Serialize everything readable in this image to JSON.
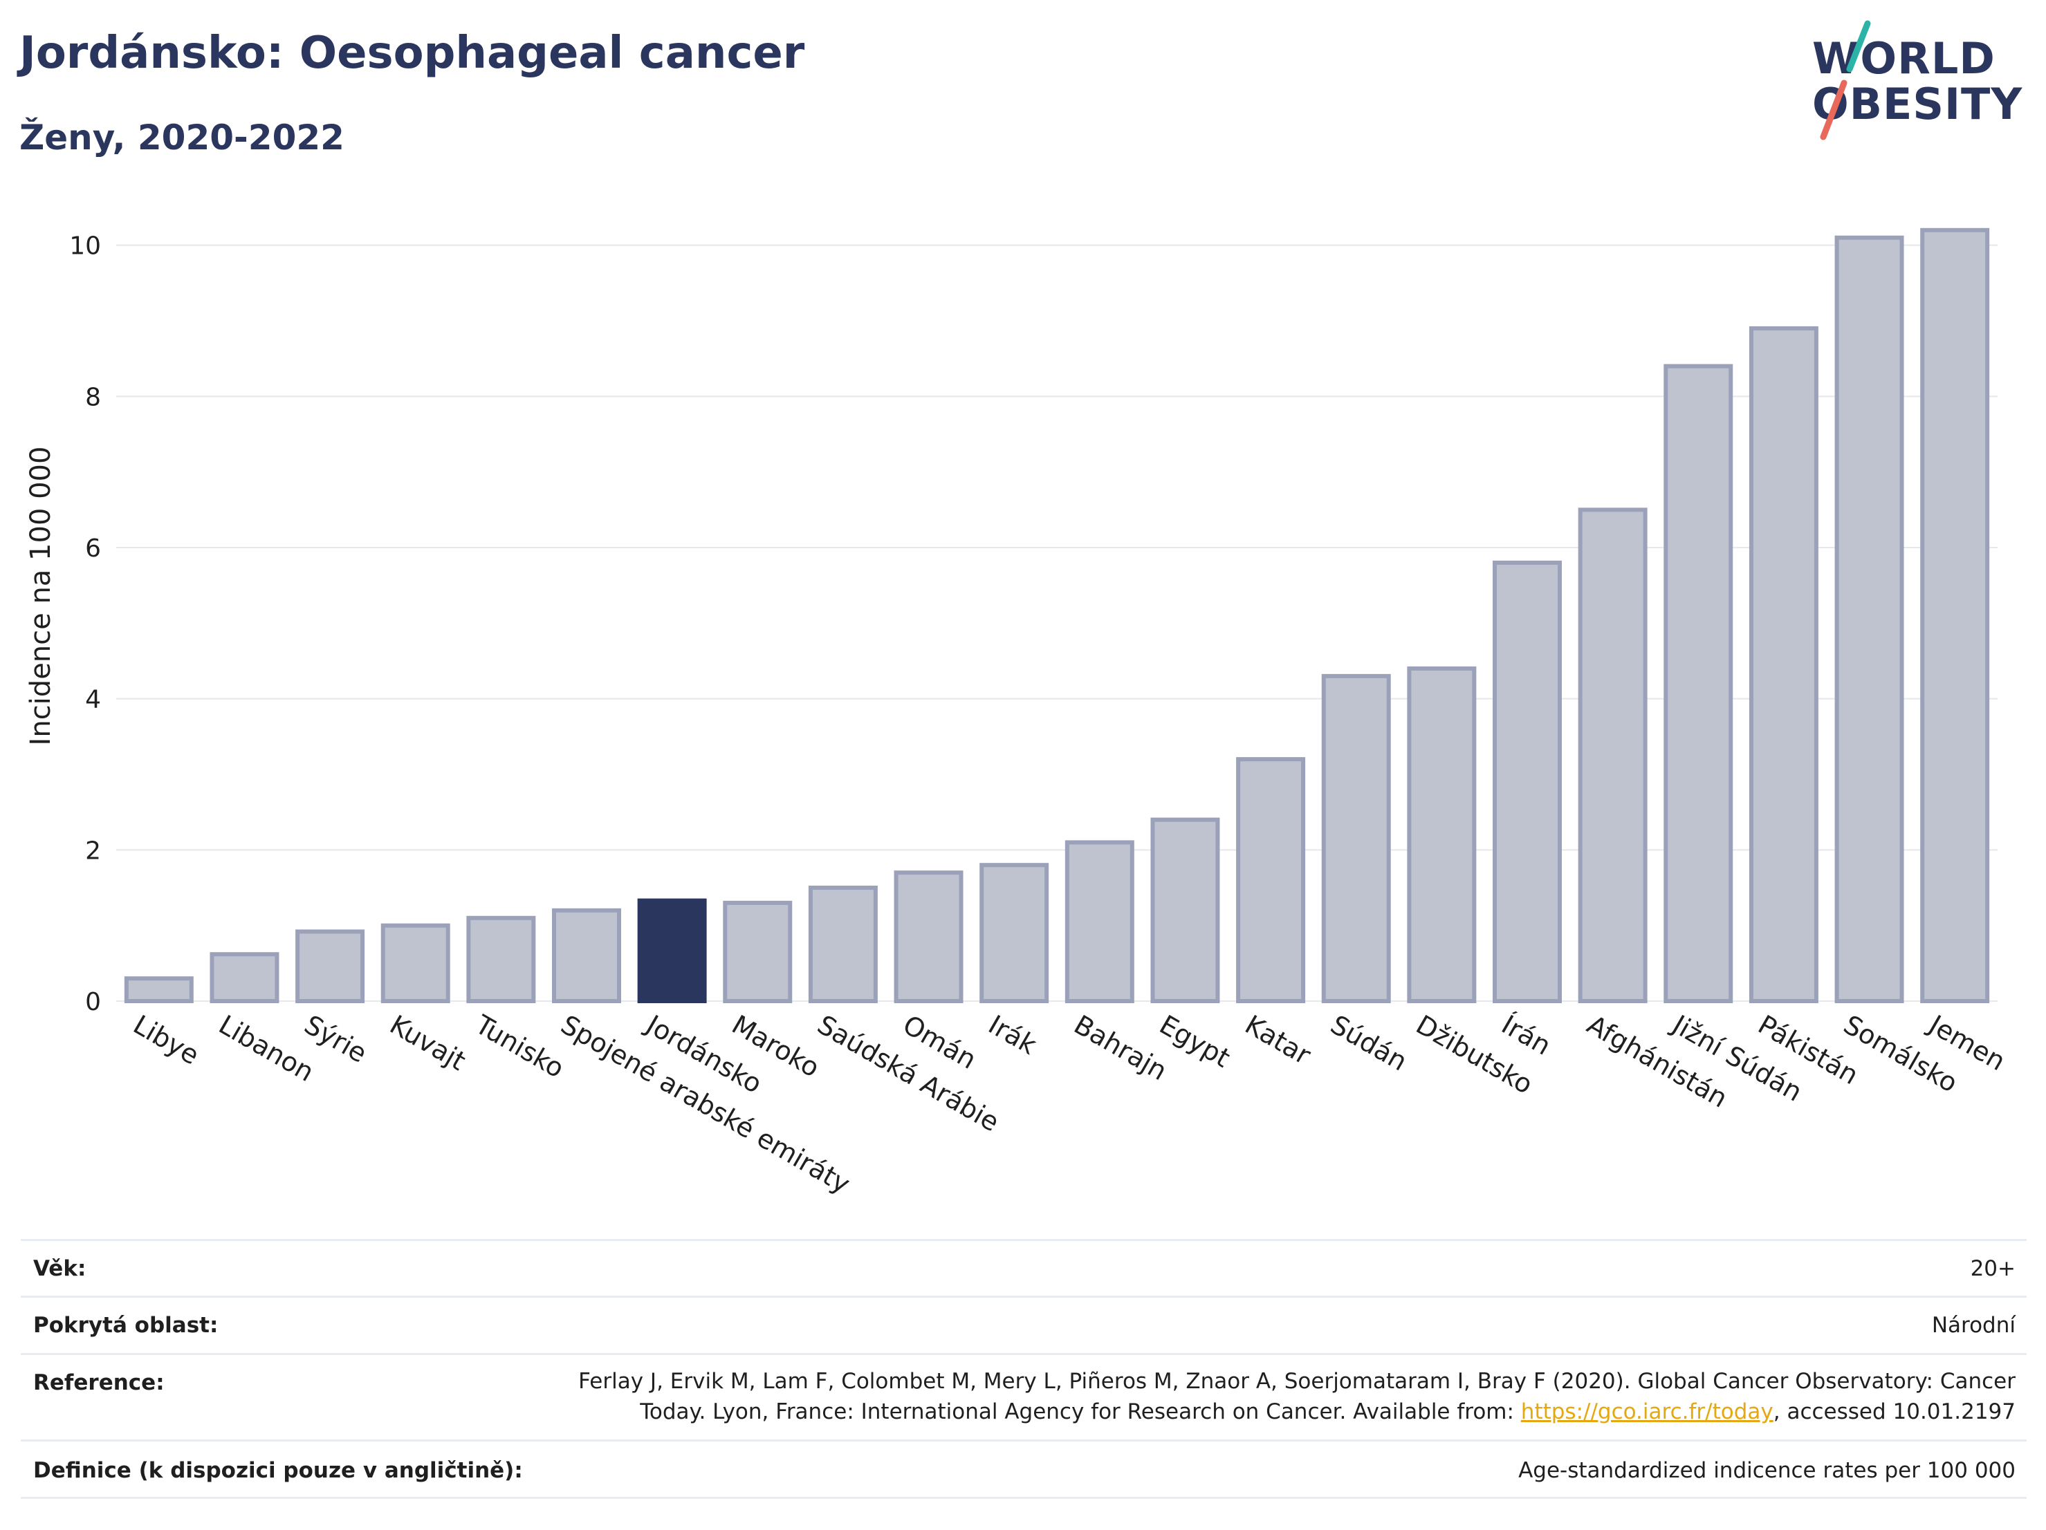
{
  "header": {
    "title": "Jordánsko: Oesophageal cancer",
    "subtitle": "Ženy, 2020-2022"
  },
  "logo": {
    "line1": "WORLD",
    "line2": "OBESITY",
    "colors": {
      "text": "#2b365e",
      "stroke_top": "#2bb3a8",
      "stroke_bottom": "#e8685a"
    }
  },
  "colors": {
    "bar": "#bfc3d0",
    "bar_edge": "#9aa1b8",
    "highlight": "#2b365e",
    "grid": "#e6e8ee",
    "axis_text": "#1f1f1f"
  },
  "chart_data": {
    "type": "bar",
    "title": "",
    "xlabel": "",
    "ylabel": "Incidence na 100 000",
    "ylim": [
      0,
      10.5
    ],
    "yticks": [
      0,
      2,
      4,
      6,
      8,
      10
    ],
    "grid": true,
    "highlight_category": "Jordánsko",
    "categories": [
      "Libye",
      "Libanon",
      "Sýrie",
      "Kuvajt",
      "Tunisko",
      "Spojené arabské emiráty",
      "Jordánsko",
      "Maroko",
      "Saúdská Arábie",
      "Omán",
      "Irák",
      "Bahrajn",
      "Egypt",
      "Katar",
      "Súdán",
      "Džibutsko",
      "Írán",
      "Afghánistán",
      "Jižní Súdán",
      "Pákistán",
      "Somálsko",
      "Jemen"
    ],
    "values": [
      0.3,
      0.62,
      0.92,
      1.0,
      1.1,
      1.2,
      1.33,
      1.3,
      1.5,
      1.7,
      1.8,
      2.1,
      2.4,
      3.2,
      4.3,
      4.4,
      5.8,
      6.5,
      8.4,
      8.9,
      10.1,
      10.2
    ]
  },
  "info": {
    "rows": [
      {
        "label": "Věk:",
        "value": "20+"
      },
      {
        "label": "Pokrytá oblast:",
        "value": "Národní"
      },
      {
        "label": "Reference:",
        "value_line1": "Ferlay J, Ervik M, Lam F, Colombet M, Mery L, Piñeros M, Znaor A, Soerjomataram I, Bray F (2020). Global Cancer Observatory: Cancer",
        "value_line2_pre": "Today. Lyon, France: International Agency for Research on Cancer. Available from: ",
        "link": "https://gco.iarc.fr/today",
        "value_line2_post": ", accessed 10.01.2197"
      },
      {
        "label": "Definice (k dispozici pouze v angličtině):",
        "value": "Age-standardized indicence rates per 100 000"
      }
    ]
  }
}
